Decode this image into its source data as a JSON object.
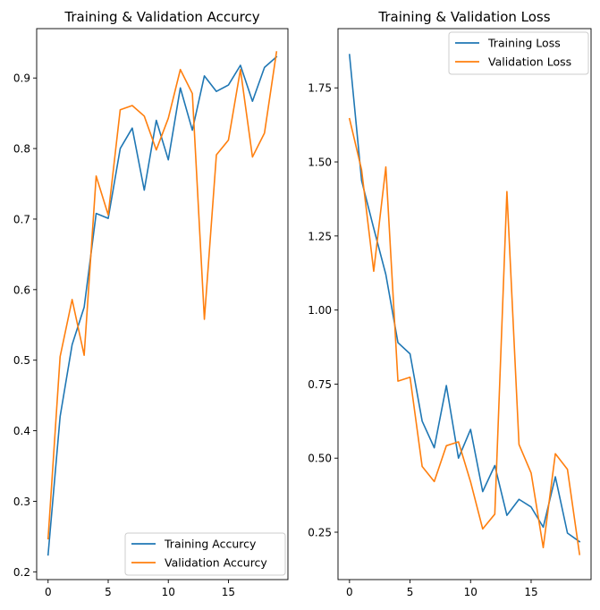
{
  "chart_data": [
    {
      "type": "line",
      "title": "Training & Validation Accurcy",
      "xlabel": "",
      "ylabel": "",
      "x": [
        0,
        1,
        2,
        3,
        4,
        5,
        6,
        7,
        8,
        9,
        10,
        11,
        12,
        13,
        14,
        15,
        16,
        17,
        18,
        19
      ],
      "xlim": [
        -0.95,
        19.95
      ],
      "ylim": [
        0.189,
        0.97
      ],
      "xticks": [
        0,
        5,
        10,
        15
      ],
      "yticks": [
        0.2,
        0.3,
        0.4,
        0.5,
        0.6,
        0.7,
        0.8,
        0.9
      ],
      "grid": false,
      "legend_position": "lower-right",
      "series": [
        {
          "name": "Training Accurcy",
          "color": "#1f77b4",
          "values": [
            0.224,
            0.42,
            0.522,
            0.575,
            0.708,
            0.701,
            0.8,
            0.829,
            0.741,
            0.84,
            0.784,
            0.886,
            0.826,
            0.903,
            0.881,
            0.89,
            0.918,
            0.867,
            0.915,
            0.93
          ]
        },
        {
          "name": "Validation Accurcy",
          "color": "#ff7f0e",
          "values": [
            0.247,
            0.505,
            0.586,
            0.507,
            0.761,
            0.706,
            0.855,
            0.861,
            0.846,
            0.798,
            0.843,
            0.912,
            0.878,
            0.558,
            0.791,
            0.812,
            0.912,
            0.788,
            0.822,
            0.937
          ]
        }
      ]
    },
    {
      "type": "line",
      "title": "Training & Validation Loss",
      "xlabel": "",
      "ylabel": "",
      "x": [
        0,
        1,
        2,
        3,
        4,
        5,
        6,
        7,
        8,
        9,
        10,
        11,
        12,
        13,
        14,
        15,
        16,
        17,
        18,
        19
      ],
      "xlim": [
        -0.95,
        19.95
      ],
      "ylim": [
        0.09,
        1.95
      ],
      "xticks": [
        0,
        5,
        10,
        15
      ],
      "yticks": [
        0.25,
        0.5,
        0.75,
        1.0,
        1.25,
        1.5,
        1.75
      ],
      "ytick_labels": [
        "0.25",
        "0.50",
        "0.75",
        "1.00",
        "1.25",
        "1.50",
        "1.75"
      ],
      "grid": false,
      "legend_position": "upper-right",
      "series": [
        {
          "name": "Training Loss",
          "color": "#1f77b4",
          "values": [
            1.862,
            1.437,
            1.276,
            1.12,
            0.89,
            0.852,
            0.625,
            0.535,
            0.745,
            0.5,
            0.597,
            0.387,
            0.475,
            0.307,
            0.361,
            0.335,
            0.267,
            0.437,
            0.247,
            0.218
          ]
        },
        {
          "name": "Validation Loss",
          "color": "#ff7f0e",
          "values": [
            1.646,
            1.473,
            1.131,
            1.483,
            0.76,
            0.773,
            0.472,
            0.421,
            0.542,
            0.555,
            0.42,
            0.261,
            0.311,
            1.4,
            0.546,
            0.45,
            0.198,
            0.515,
            0.462,
            0.175
          ]
        }
      ]
    }
  ]
}
